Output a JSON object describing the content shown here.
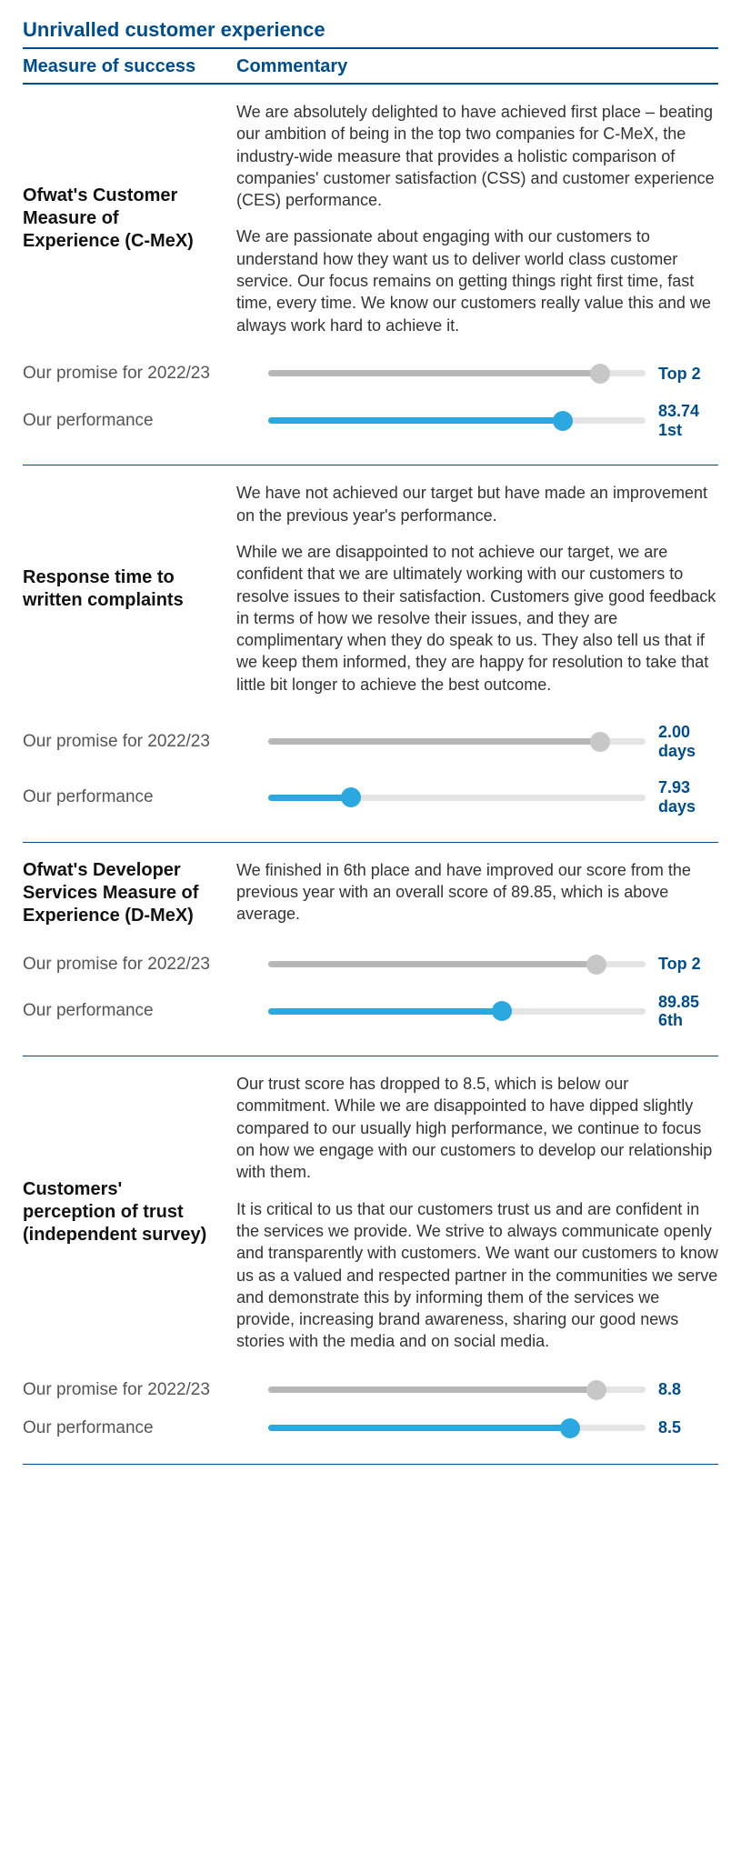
{
  "colors": {
    "brand_dark": "#004d8e",
    "promise_bar": "#b7b7b7",
    "promise_dot": "#c7c7c7",
    "perf_bar": "#2ca8e0",
    "perf_dot": "#2ca8e0",
    "track": "#e4e4e4"
  },
  "section_title": "Unrivalled customer experience",
  "headers": {
    "left": "Measure of success",
    "right": "Commentary"
  },
  "row_labels": {
    "promise": "Our promise for 2022/23",
    "performance": "Our performance"
  },
  "measures": [
    {
      "name": "Ofwat's Customer Measure of Experience (C-MeX)",
      "commentary": [
        "We are absolutely delighted to have achieved first place – beating our ambition of being in the top two companies for C-MeX, the industry-wide measure that provides a holistic comparison of companies' customer satisfaction (CSS) and customer experience (CES) performance.",
        "We are passionate about engaging with our customers to understand how they want us to deliver world class customer service. Our focus remains on getting things right first time, fast time, every time. We know our customers really value this and we always work hard to achieve it."
      ],
      "promise": {
        "pct": 88,
        "label1": "Top 2",
        "label2": ""
      },
      "performance": {
        "pct": 78,
        "label1": "83.74",
        "label2": "1st"
      }
    },
    {
      "name": "Response time to written complaints",
      "commentary": [
        "We have not achieved our target but have made an improvement on the previous year's performance.",
        "While we are disappointed to not achieve our target, we are confident that we are ultimately working with our customers to resolve issues to their satisfaction. Customers give good feedback in terms of how we resolve their issues, and they are complimentary when they do speak to us. They also tell us that if we keep them informed, they are happy for resolution to take that little bit longer to achieve the best outcome."
      ],
      "promise": {
        "pct": 88,
        "label1": "2.00",
        "label2": "days"
      },
      "performance": {
        "pct": 22,
        "label1": "7.93",
        "label2": "days"
      }
    },
    {
      "name": "Ofwat's Developer Services Measure of Experience (D-MeX)",
      "commentary": [
        "We finished in 6th place and have improved our score from the previous year with an overall score of 89.85, which is above average."
      ],
      "promise": {
        "pct": 87,
        "label1": "Top 2",
        "label2": ""
      },
      "performance": {
        "pct": 62,
        "label1": "89.85",
        "label2": "6th"
      }
    },
    {
      "name": "Customers' perception of trust (independent survey)",
      "commentary": [
        "Our trust score has dropped to 8.5, which is below our commitment. While we are disappointed to have dipped slightly compared to our usually high performance, we continue to focus on how we engage with our customers to develop our relationship with them.",
        "It is critical to us that our customers trust us and are confident in the services we provide. We strive to always communicate openly and transparently with customers. We want our customers to know us as a valued and respected partner in the communities we serve and demonstrate this by informing them of the services we provide, increasing brand awareness, sharing our good news stories with the media and on social media."
      ],
      "promise": {
        "pct": 87,
        "label1": "8.8",
        "label2": ""
      },
      "performance": {
        "pct": 80,
        "label1": "8.5",
        "label2": ""
      }
    }
  ]
}
